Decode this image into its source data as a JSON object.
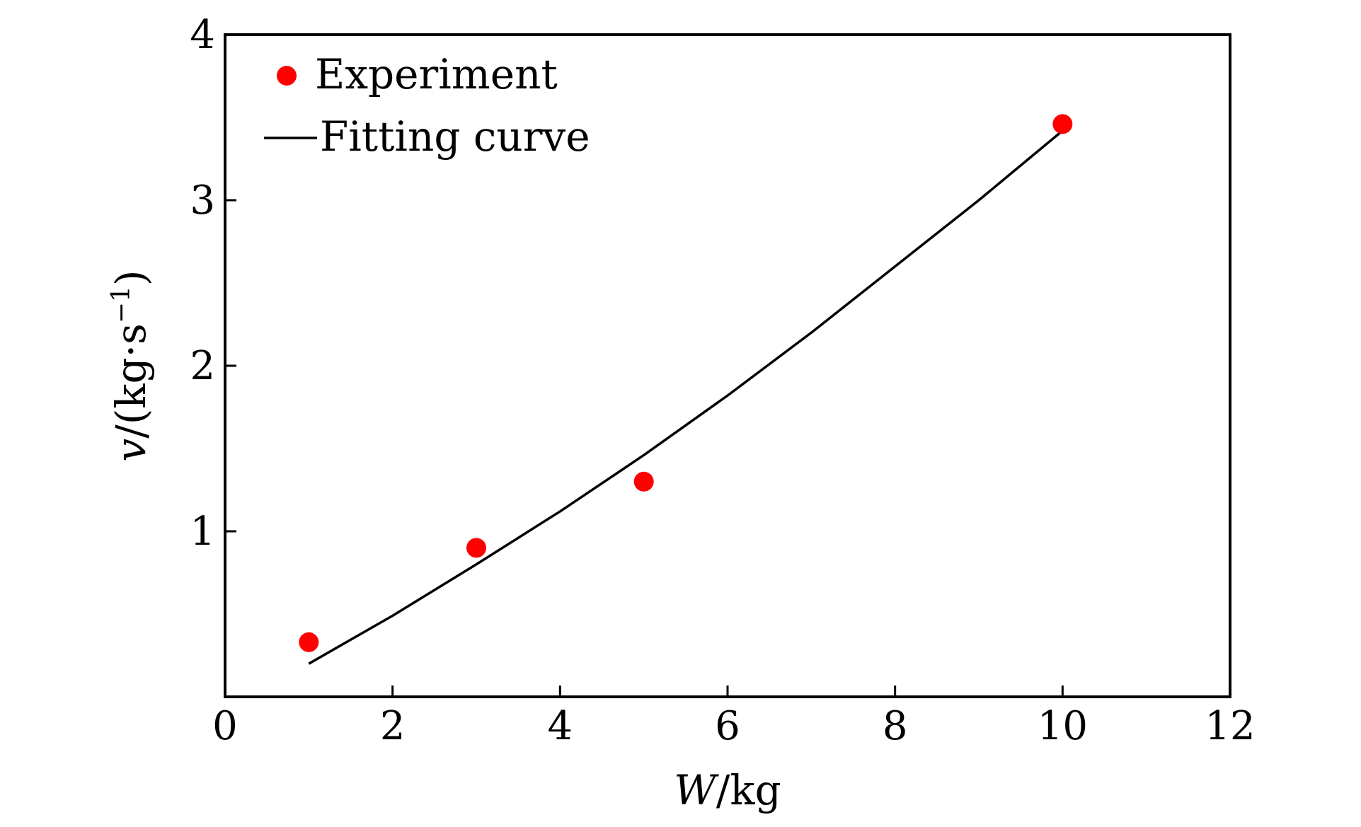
{
  "chart_data": {
    "type": "scatter",
    "title": "",
    "xlabel": {
      "var": "W",
      "unit": "/kg"
    },
    "ylabel": {
      "var": "v",
      "unit": "/(kg·s",
      "exp": "−1",
      "close": ")"
    },
    "xlim": [
      0,
      12
    ],
    "ylim": [
      0,
      4
    ],
    "xticks": [
      0,
      2,
      4,
      6,
      8,
      10,
      12
    ],
    "yticks": [
      1,
      2,
      3,
      4
    ],
    "grid": false,
    "legend_position": "top-left",
    "series": [
      {
        "name": "Experiment",
        "kind": "points",
        "color": "#ff0000",
        "x": [
          1,
          3,
          5,
          10
        ],
        "y": [
          0.33,
          0.9,
          1.3,
          3.46
        ]
      },
      {
        "name": "Fitting curve",
        "kind": "line",
        "color": "#000000",
        "x": [
          1,
          2,
          3,
          4,
          5,
          6,
          7,
          8,
          9,
          10
        ],
        "y": [
          0.2,
          0.49,
          0.8,
          1.12,
          1.46,
          1.82,
          2.2,
          2.6,
          3.0,
          3.42
        ]
      }
    ]
  }
}
